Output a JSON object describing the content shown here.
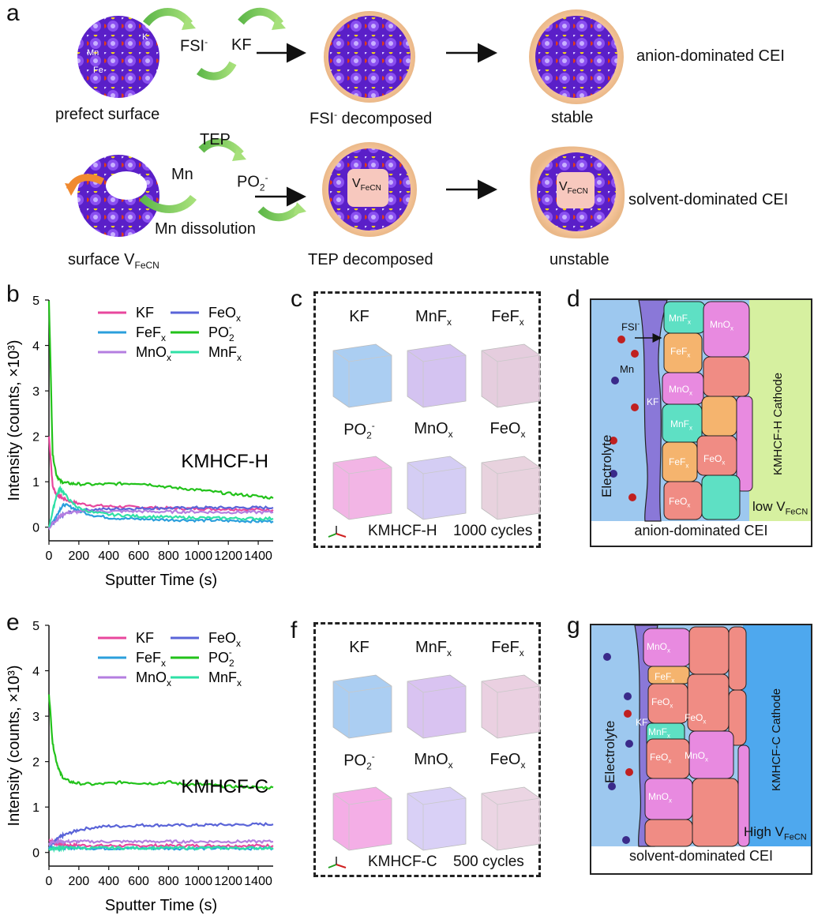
{
  "panel_labels": {
    "a": "a",
    "b": "b",
    "c": "c",
    "d": "d",
    "e": "e",
    "f": "f",
    "g": "g"
  },
  "panel_a": {
    "row1": {
      "surface_label": "prefect surface",
      "atom_labels": {
        "mn": "Mn",
        "fe": "Fe",
        "k": "K"
      },
      "anion": "FSI",
      "anion_sup": "-",
      "product": "KF",
      "stage2_label_main": "FSI",
      "stage2_label_sup": "-",
      "stage2_label_rest": " decomposed",
      "stage3_label": "stable",
      "cei_label": "anion-dominated CEI"
    },
    "row2": {
      "surface_label_main": "surface V",
      "surface_label_sub": "FeCN",
      "mn_label": "Mn",
      "dissolution_label": "Mn dissolution",
      "solvent_label": "TEP",
      "po2_main": "PO",
      "po2_sub": "2",
      "po2_sup": "-",
      "vacancy_main": "V",
      "vacancy_sub": "FeCN",
      "stage2_label": "TEP decomposed",
      "stage3_label": "unstable",
      "cei_label": "solvent-dominated CEI"
    }
  },
  "colors": {
    "kf": "#e8479d",
    "feox": "#5a64d8",
    "fefx": "#2b9fdc",
    "po2": "#22c21a",
    "mnox": "#b47ee0",
    "mnfx": "#2fe0a6",
    "electrolyte": "#9dc8ef",
    "kf_layer": "#8a78d8",
    "cathode_h": "#d6f0a0",
    "cathode_c": "#4ea8ee",
    "tile_salmon": "#f08c84",
    "tile_pink": "#e88ae0",
    "tile_orange": "#f5b46e",
    "tile_teal": "#5ee0c4",
    "shell": "#f5c49a",
    "crystal": "#6a2cd0"
  },
  "chart_data": [
    {
      "type": "line",
      "panel": "b",
      "annotation": "KMHCF-H",
      "xlabel": "Sputter Time (s)",
      "ylabel": "Intensity (counts, ×10³)",
      "xlim": [
        0,
        1500
      ],
      "ylim": [
        -0.3,
        5
      ],
      "xticks": [
        "0",
        "200",
        "400",
        "600",
        "800",
        "1000",
        "1200",
        "1400"
      ],
      "yticks": [
        "0",
        "1",
        "2",
        "3",
        "4",
        "5"
      ],
      "x": [
        0,
        25,
        50,
        75,
        100,
        150,
        200,
        300,
        400,
        500,
        600,
        700,
        800,
        900,
        1000,
        1100,
        1200,
        1300,
        1400,
        1500
      ],
      "series": [
        {
          "name": "KF",
          "values": [
            2.0,
            0.9,
            0.72,
            0.68,
            0.62,
            0.56,
            0.52,
            0.48,
            0.46,
            0.45,
            0.44,
            0.43,
            0.42,
            0.41,
            0.41,
            0.4,
            0.4,
            0.39,
            0.39,
            0.38
          ]
        },
        {
          "name": "FeOx",
          "values": [
            0.02,
            0.08,
            0.15,
            0.22,
            0.28,
            0.34,
            0.37,
            0.39,
            0.4,
            0.41,
            0.41,
            0.42,
            0.42,
            0.42,
            0.43,
            0.43,
            0.43,
            0.43,
            0.43,
            0.43
          ]
        },
        {
          "name": "FeFx",
          "values": [
            0.0,
            0.12,
            0.25,
            0.4,
            0.5,
            0.44,
            0.36,
            0.26,
            0.21,
            0.19,
            0.18,
            0.17,
            0.16,
            0.16,
            0.15,
            0.15,
            0.14,
            0.14,
            0.13,
            0.13
          ]
        },
        {
          "name": "PO2-",
          "values": [
            5.0,
            1.6,
            1.15,
            1.02,
            0.98,
            0.96,
            0.95,
            0.94,
            0.95,
            0.96,
            0.97,
            0.93,
            0.88,
            0.85,
            0.82,
            0.78,
            0.74,
            0.71,
            0.68,
            0.64
          ]
        },
        {
          "name": "MnOx",
          "values": [
            0.0,
            0.08,
            0.16,
            0.24,
            0.3,
            0.33,
            0.34,
            0.35,
            0.35,
            0.35,
            0.35,
            0.34,
            0.34,
            0.34,
            0.34,
            0.33,
            0.33,
            0.33,
            0.33,
            0.33
          ]
        },
        {
          "name": "MnFx",
          "values": [
            0.0,
            0.35,
            0.7,
            0.85,
            0.75,
            0.55,
            0.42,
            0.32,
            0.28,
            0.26,
            0.24,
            0.23,
            0.22,
            0.21,
            0.21,
            0.2,
            0.2,
            0.19,
            0.19,
            0.19
          ]
        }
      ],
      "legend": [
        {
          "main": "KF",
          "sub": "",
          "sup": ""
        },
        {
          "main": "FeO",
          "sub": "x",
          "sup": ""
        },
        {
          "main": "FeF",
          "sub": "x",
          "sup": ""
        },
        {
          "main": "PO",
          "sub": "2",
          "sup": "-"
        },
        {
          "main": "MnO",
          "sub": "x",
          "sup": ""
        },
        {
          "main": "MnF",
          "sub": "x",
          "sup": ""
        }
      ]
    },
    {
      "type": "line",
      "panel": "e",
      "annotation": "KMHCF-C",
      "xlabel": "Sputter Time (s)",
      "ylabel": "Intensity (counts, ×10³)",
      "xlim": [
        0,
        1500
      ],
      "ylim": [
        -0.3,
        5
      ],
      "xticks": [
        "0",
        "200",
        "400",
        "600",
        "800",
        "1000",
        "1200",
        "1400"
      ],
      "yticks": [
        "0",
        "1",
        "2",
        "3",
        "4",
        "5"
      ],
      "x": [
        0,
        25,
        50,
        75,
        100,
        150,
        200,
        300,
        400,
        500,
        600,
        700,
        800,
        900,
        1000,
        1100,
        1200,
        1300,
        1400,
        1500
      ],
      "series": [
        {
          "name": "KF",
          "values": [
            0.28,
            0.24,
            0.2,
            0.18,
            0.17,
            0.16,
            0.16,
            0.15,
            0.15,
            0.15,
            0.15,
            0.15,
            0.15,
            0.15,
            0.15,
            0.15,
            0.15,
            0.15,
            0.15,
            0.15
          ]
        },
        {
          "name": "FeOx",
          "values": [
            0.1,
            0.2,
            0.28,
            0.34,
            0.38,
            0.44,
            0.5,
            0.55,
            0.58,
            0.58,
            0.6,
            0.6,
            0.6,
            0.6,
            0.6,
            0.61,
            0.61,
            0.61,
            0.62,
            0.62
          ]
        },
        {
          "name": "FeFx",
          "values": [
            0.12,
            0.11,
            0.1,
            0.1,
            0.1,
            0.1,
            0.1,
            0.09,
            0.09,
            0.09,
            0.09,
            0.09,
            0.09,
            0.09,
            0.09,
            0.09,
            0.09,
            0.09,
            0.09,
            0.09
          ]
        },
        {
          "name": "PO2-",
          "values": [
            3.5,
            2.4,
            2.0,
            1.75,
            1.62,
            1.55,
            1.52,
            1.5,
            1.52,
            1.55,
            1.53,
            1.52,
            1.55,
            1.5,
            1.5,
            1.48,
            1.45,
            1.45,
            1.43,
            1.43
          ]
        },
        {
          "name": "MnOx",
          "values": [
            0.2,
            0.22,
            0.24,
            0.24,
            0.24,
            0.24,
            0.24,
            0.24,
            0.24,
            0.24,
            0.24,
            0.24,
            0.24,
            0.24,
            0.24,
            0.24,
            0.24,
            0.24,
            0.24,
            0.24
          ]
        },
        {
          "name": "MnFx",
          "values": [
            0.08,
            0.09,
            0.09,
            0.1,
            0.1,
            0.1,
            0.1,
            0.1,
            0.1,
            0.1,
            0.1,
            0.1,
            0.1,
            0.1,
            0.1,
            0.1,
            0.1,
            0.1,
            0.1,
            0.1
          ]
        }
      ],
      "legend": [
        {
          "main": "KF",
          "sub": "",
          "sup": ""
        },
        {
          "main": "FeO",
          "sub": "x",
          "sup": ""
        },
        {
          "main": "FeF",
          "sub": "x",
          "sup": ""
        },
        {
          "main": "PO",
          "sub": "2",
          "sup": "-"
        },
        {
          "main": "MnO",
          "sub": "x",
          "sup": ""
        },
        {
          "main": "MnF",
          "sub": "x",
          "sup": ""
        }
      ]
    }
  ],
  "panel_c": {
    "cubes": [
      {
        "label_main": "KF",
        "label_sub": "",
        "label_sup": "",
        "color": "#9cc6f0"
      },
      {
        "label_main": "MnF",
        "label_sub": "x",
        "label_sup": "",
        "color": "#cdb8ee"
      },
      {
        "label_main": "FeF",
        "label_sub": "x",
        "label_sup": "",
        "color": "#e0c4d8"
      },
      {
        "label_main": "PO",
        "label_sub": "2",
        "label_sup": "-",
        "color": "#f0a8e0"
      },
      {
        "label_main": "MnO",
        "label_sub": "x",
        "label_sup": "",
        "color": "#cdc4f2"
      },
      {
        "label_main": "FeO",
        "label_sub": "x",
        "label_sup": "",
        "color": "#e4cad8"
      }
    ],
    "sample": "KMHCF-H",
    "cycles": "1000 cycles"
  },
  "panel_f": {
    "cubes": [
      {
        "label_main": "KF",
        "label_sub": "",
        "label_sup": "",
        "color": "#9cc6f0"
      },
      {
        "label_main": "MnF",
        "label_sub": "x",
        "label_sup": "",
        "color": "#d2b8ee"
      },
      {
        "label_main": "FeF",
        "label_sub": "x",
        "label_sup": "",
        "color": "#e6c8dc"
      },
      {
        "label_main": "PO",
        "label_sub": "2",
        "label_sup": "-",
        "color": "#f2a0e2"
      },
      {
        "label_main": "MnO",
        "label_sub": "x",
        "label_sup": "",
        "color": "#d2c8f4"
      },
      {
        "label_main": "FeO",
        "label_sub": "x",
        "label_sup": "",
        "color": "#e8cede"
      }
    ],
    "sample": "KMHCF-C",
    "cycles": "500 cycles"
  },
  "panel_d": {
    "electrolyte": "Electrolyte",
    "kf": "KF",
    "fsi_main": "FSI",
    "fsi_sup": "-",
    "mn": "Mn",
    "cathode": "KMHCF-H  Cathode",
    "vacancy_main": "low V",
    "vacancy_sub": "FeCN",
    "caption": "anion-dominated CEI",
    "tiles": [
      {
        "main": "MnF",
        "sub": "x"
      },
      {
        "main": "MnO",
        "sub": "x"
      },
      {
        "main": "FeF",
        "sub": "x"
      },
      {
        "main": "MnO",
        "sub": "x"
      },
      {
        "main": "MnF",
        "sub": "x"
      },
      {
        "main": "FeF",
        "sub": "x"
      },
      {
        "main": "FeO",
        "sub": "x"
      },
      {
        "main": "FeO",
        "sub": "x"
      }
    ]
  },
  "panel_g": {
    "electrolyte": "Electrolyte",
    "kf": "KF",
    "cathode": "KMHCF-C  Cathode",
    "vacancy_main": "High V",
    "vacancy_sub": "FeCN",
    "caption": "solvent-dominated CEI",
    "tiles": [
      {
        "main": "MnO",
        "sub": "x"
      },
      {
        "main": "FeF",
        "sub": "x"
      },
      {
        "main": "FeO",
        "sub": "x"
      },
      {
        "main": "FeO",
        "sub": "x"
      },
      {
        "main": "MnF",
        "sub": "x"
      },
      {
        "main": "FeO",
        "sub": "x"
      },
      {
        "main": "MnO",
        "sub": "x"
      },
      {
        "main": "MnO",
        "sub": "x"
      }
    ]
  }
}
